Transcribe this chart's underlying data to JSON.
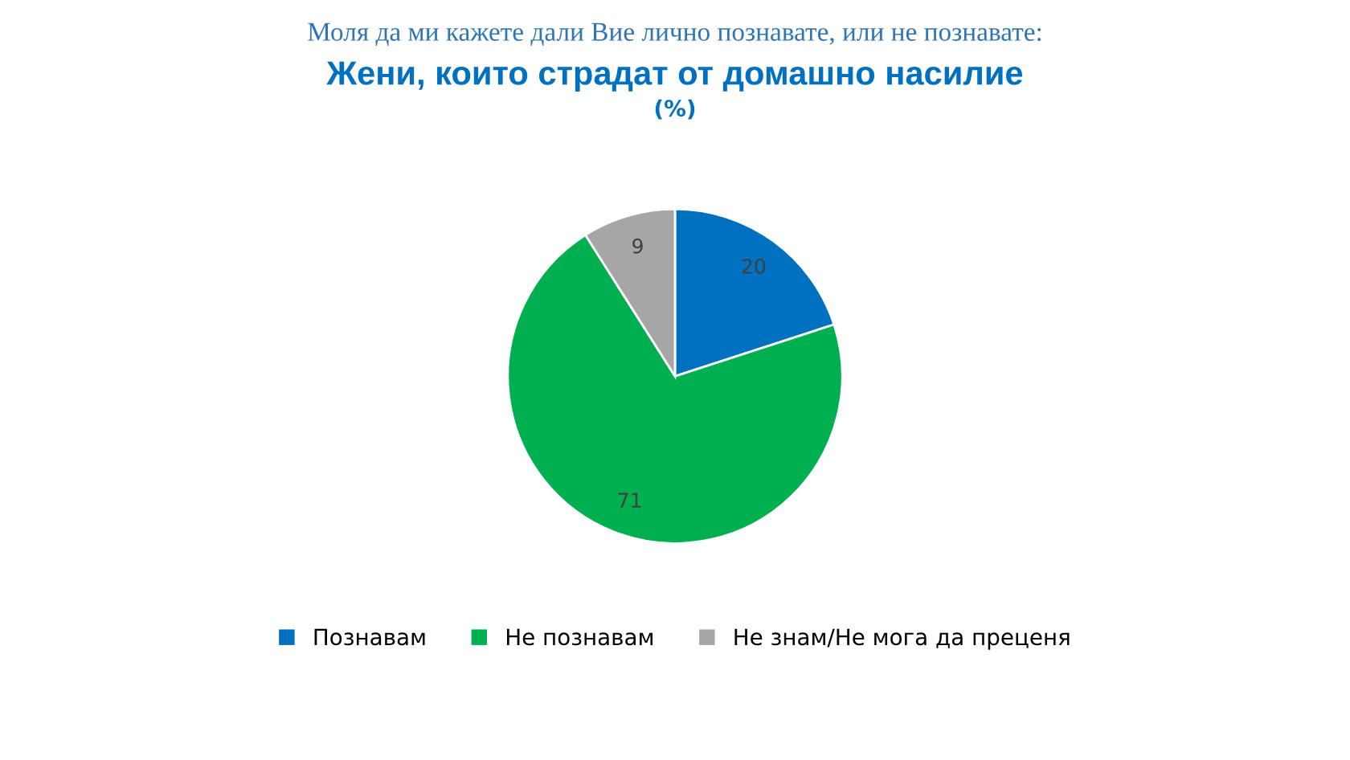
{
  "chart_data": {
    "type": "pie",
    "title": "Жени, които страдат от домашно насилие",
    "subtitle": "Моля да ми кажете дали Вие лично познавате, или не познавате:",
    "annotations": [
      "(%)"
    ],
    "categories": [
      "Познавам",
      "Не познавам",
      "Не знам/Не мога да преценя"
    ],
    "values": [
      20,
      71,
      9
    ],
    "colors": [
      "#0070c0",
      "#00b050",
      "#a6a6a6"
    ],
    "data_labels": true,
    "legend": "bottom"
  }
}
